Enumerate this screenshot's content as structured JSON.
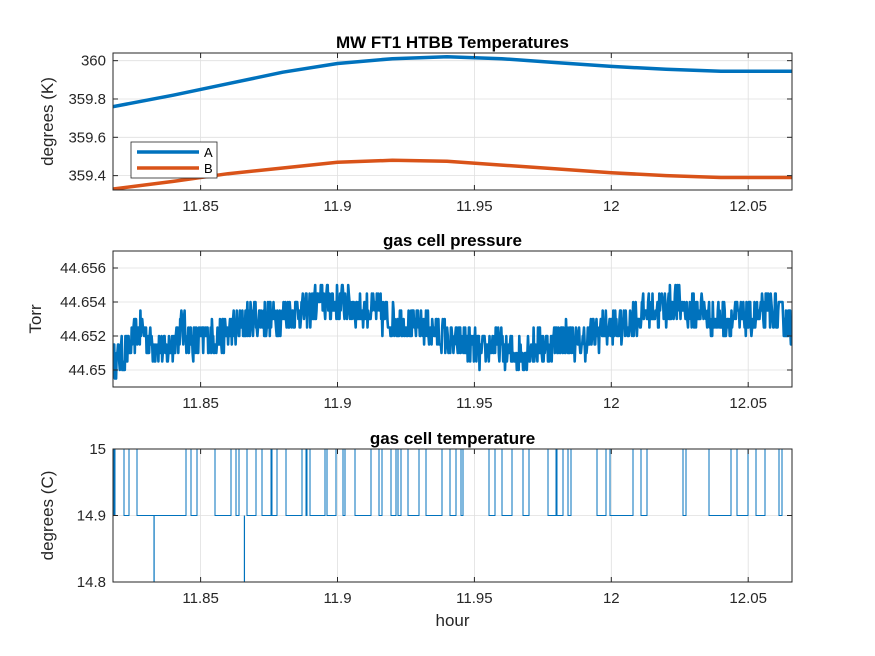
{
  "chart_data": [
    {
      "type": "line",
      "title": "MW FT1 HTBB Temperatures",
      "xlabel": "",
      "ylabel": "degrees (K)",
      "xlim": [
        11.818,
        12.066
      ],
      "ylim": [
        359.325,
        360.04
      ],
      "xticks": [
        11.85,
        11.9,
        11.95,
        12,
        12.05
      ],
      "xtick_labels": [
        "11.85",
        "11.9",
        "11.95",
        "12",
        "12.05"
      ],
      "yticks": [
        359.4,
        359.6,
        359.8,
        360
      ],
      "ytick_labels": [
        "359.4",
        "359.6",
        "359.8",
        "360"
      ],
      "grid": true,
      "legend_position": "bottom-left",
      "series": [
        {
          "name": "A",
          "color": "#0072BD",
          "x": [
            11.818,
            11.84,
            11.86,
            11.88,
            11.9,
            11.92,
            11.94,
            11.96,
            11.98,
            12.0,
            12.02,
            12.04,
            12.066
          ],
          "y": [
            359.76,
            359.82,
            359.88,
            359.94,
            359.985,
            360.01,
            360.02,
            360.01,
            359.99,
            359.97,
            359.955,
            359.945,
            359.945
          ]
        },
        {
          "name": "B",
          "color": "#D95319",
          "x": [
            11.818,
            11.84,
            11.86,
            11.88,
            11.9,
            11.92,
            11.94,
            11.96,
            11.98,
            12.0,
            12.02,
            12.04,
            12.066
          ],
          "y": [
            359.33,
            359.37,
            359.41,
            359.44,
            359.47,
            359.48,
            359.475,
            359.455,
            359.435,
            359.415,
            359.4,
            359.39,
            359.39
          ]
        }
      ]
    },
    {
      "type": "line",
      "title": "gas cell pressure",
      "xlabel": "",
      "ylabel": "Torr",
      "xlim": [
        11.818,
        12.066
      ],
      "ylim": [
        44.649,
        44.657
      ],
      "xticks": [
        11.85,
        11.9,
        11.95,
        12,
        12.05
      ],
      "xtick_labels": [
        "11.85",
        "11.9",
        "11.95",
        "12",
        "12.05"
      ],
      "yticks": [
        44.65,
        44.652,
        44.654,
        44.656
      ],
      "ytick_labels": [
        "44.65",
        "44.652",
        "44.654",
        "44.656"
      ],
      "grid": true,
      "series": [
        {
          "color": "#0072BD",
          "x": [
            11.818,
            11.823,
            11.828,
            11.833,
            11.838,
            11.843,
            11.848,
            11.853,
            11.858,
            11.863,
            11.868,
            11.873,
            11.878,
            11.883,
            11.888,
            11.893,
            11.898,
            11.903,
            11.908,
            11.913,
            11.918,
            11.923,
            11.928,
            11.933,
            11.938,
            11.943,
            11.948,
            11.953,
            11.958,
            11.963,
            11.968,
            11.973,
            11.978,
            11.983,
            11.988,
            11.993,
            11.998,
            12.003,
            12.008,
            12.013,
            12.018,
            12.023,
            12.028,
            12.033,
            12.038,
            12.043,
            12.048,
            12.053,
            12.058,
            12.063,
            12.066
          ],
          "y": [
            44.6505,
            44.651,
            44.6525,
            44.6515,
            44.651,
            44.6525,
            44.6515,
            44.652,
            44.652,
            44.6525,
            44.653,
            44.653,
            44.653,
            44.6535,
            44.6535,
            44.654,
            44.654,
            44.654,
            44.6535,
            44.6535,
            44.653,
            44.653,
            44.6525,
            44.6525,
            44.652,
            44.6515,
            44.6515,
            44.651,
            44.6515,
            44.651,
            44.651,
            44.6515,
            44.6515,
            44.652,
            44.6515,
            44.652,
            44.6525,
            44.6525,
            44.653,
            44.6535,
            44.6535,
            44.654,
            44.6535,
            44.6535,
            44.653,
            44.653,
            44.653,
            44.653,
            44.6535,
            44.653,
            44.6525
          ]
        }
      ]
    },
    {
      "type": "line",
      "title": "gas cell temperature",
      "xlabel": "hour",
      "ylabel": "degrees (C)",
      "xlim": [
        11.818,
        12.066
      ],
      "ylim": [
        14.8,
        15
      ],
      "xticks": [
        11.85,
        11.9,
        11.95,
        12,
        12.05
      ],
      "xtick_labels": [
        "11.85",
        "11.9",
        "11.95",
        "12",
        "12.05"
      ],
      "yticks": [
        14.8,
        14.9,
        15
      ],
      "ytick_labels": [
        "14.8",
        "14.9",
        "15"
      ],
      "grid": true,
      "levels": [
        14.9,
        15
      ],
      "dips": [
        {
          "x": 11.833,
          "y": 14.8
        },
        {
          "x": 11.866,
          "y": 14.8
        }
      ],
      "series": [
        {
          "color": "#0072BD"
        }
      ]
    }
  ]
}
